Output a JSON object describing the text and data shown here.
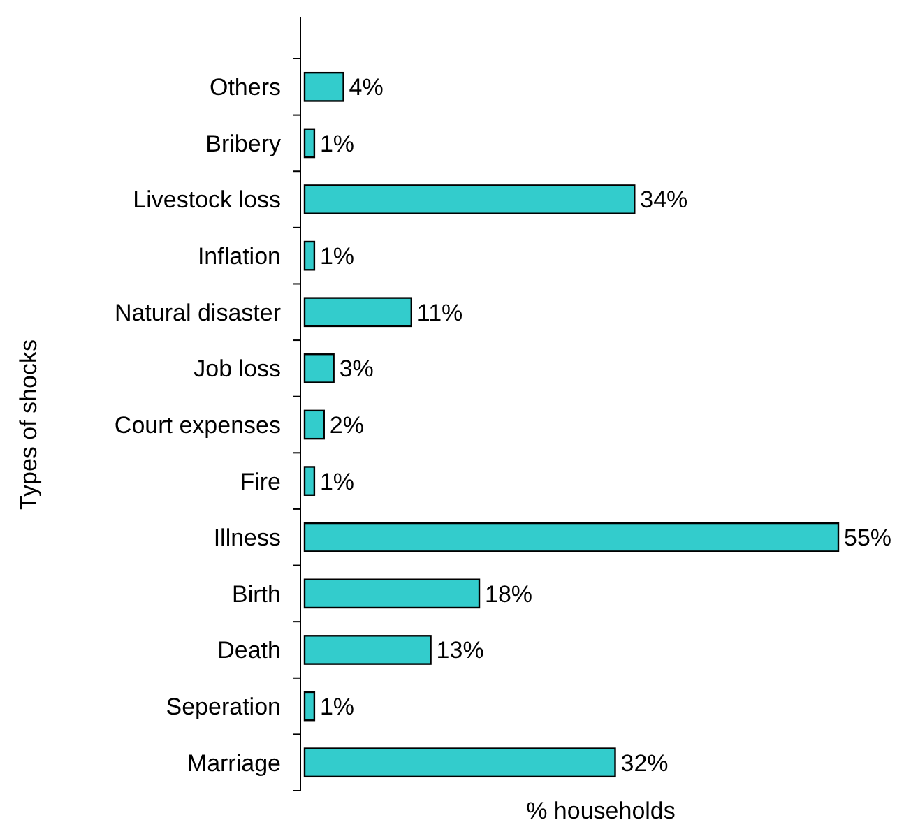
{
  "chart_data": {
    "type": "bar",
    "orientation": "horizontal",
    "xlabel": "% households",
    "ylabel": "Types of shocks",
    "categories": [
      "Others",
      "Bribery",
      "Livestock loss",
      "Inflation",
      "Natural disaster",
      "Job loss",
      "Court expenses",
      "Fire",
      "Illness",
      "Birth",
      "Death",
      "Seperation",
      "Marriage"
    ],
    "values": [
      4,
      1,
      34,
      1,
      11,
      3,
      2,
      1,
      55,
      18,
      13,
      1,
      32
    ],
    "value_labels": [
      "4%",
      "1%",
      "34%",
      "1%",
      "11%",
      "3%",
      "2%",
      "1%",
      "55%",
      "18%",
      "13%",
      "1%",
      "32%"
    ],
    "color": "#33cccc",
    "tick_labels": "y"
  }
}
